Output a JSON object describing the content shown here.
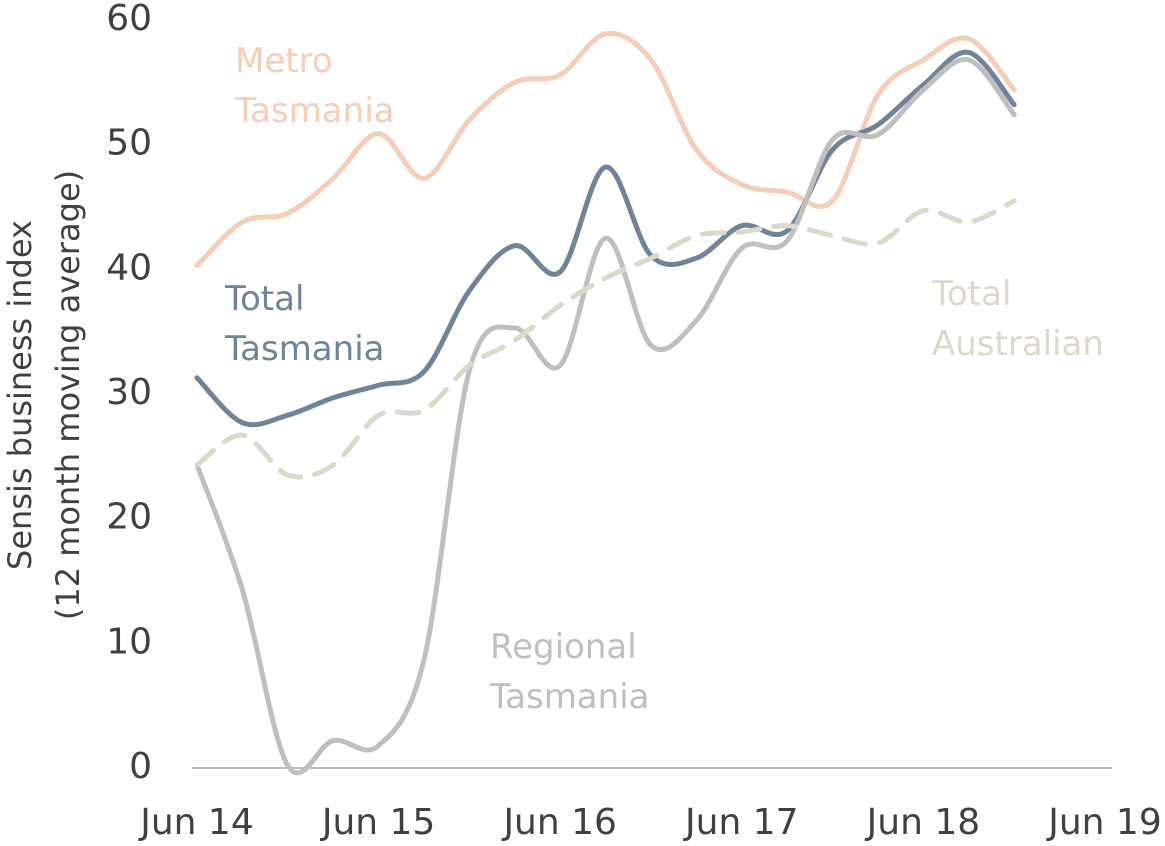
{
  "chart_data": {
    "type": "line",
    "ylabel": [
      "Sensis business index",
      "(12 month moving average)"
    ],
    "categories": [
      "Jun 14",
      null,
      null,
      null,
      "Jun 15",
      null,
      null,
      null,
      "Jun 16",
      null,
      null,
      null,
      "Jun 17",
      null,
      null,
      null,
      "Jun 18",
      null,
      null,
      null,
      "Jun 19"
    ],
    "ylim": [
      0,
      60
    ],
    "yticks": [
      0,
      10,
      20,
      30,
      40,
      50,
      60
    ],
    "series": [
      {
        "name": "Metro Tasmania",
        "color": "#f7cdb5",
        "dash": false,
        "values": [
          40.3,
          43.8,
          44.5,
          47.3,
          50.9,
          47.3,
          52,
          55,
          55.6,
          58.9,
          56.8,
          49.6,
          46.8,
          46.2,
          45.5,
          54,
          56.8,
          58.5,
          54.4,
          null,
          null
        ]
      },
      {
        "name": "Total Tasmania",
        "color": "#6f849b",
        "dash": false,
        "values": [
          31.3,
          27.7,
          28.3,
          29.7,
          30.7,
          31.8,
          38.3,
          41.9,
          39.8,
          48.2,
          41.1,
          40.9,
          43.5,
          43.1,
          49.6,
          51.6,
          54.8,
          57.4,
          53.2,
          null,
          null
        ]
      },
      {
        "name": "Regional Tasmania",
        "color": "#bfbfbf",
        "dash": false,
        "values": [
          24.3,
          14.3,
          0.2,
          2.2,
          1.8,
          8.7,
          31.9,
          35.3,
          32.3,
          42.5,
          33.9,
          35.9,
          41.7,
          42.3,
          50.4,
          50.8,
          54.4,
          56.8,
          52.4,
          null,
          null
        ]
      },
      {
        "name": "Total Australian",
        "color": "#dcd9ca",
        "dash": true,
        "values": [
          24.3,
          26.7,
          23.5,
          24.3,
          28.3,
          28.7,
          32.3,
          34.3,
          37.1,
          39.3,
          40.9,
          42.7,
          43,
          43.5,
          42.7,
          42.1,
          44.7,
          43.8,
          45.5,
          null,
          null
        ]
      }
    ]
  }
}
